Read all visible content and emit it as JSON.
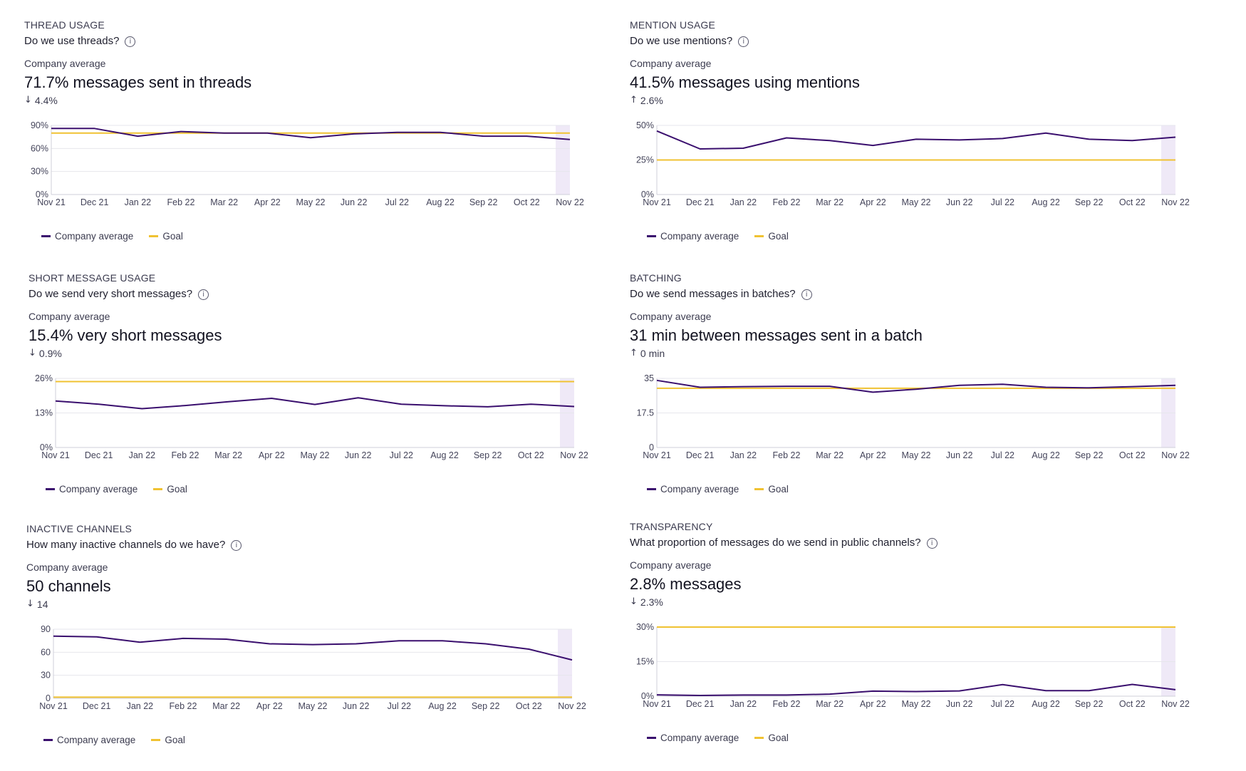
{
  "common": {
    "avg_label": "Company average",
    "legend": [
      "Company average",
      "Goal"
    ],
    "colors": {
      "series": "#3a0f6e",
      "goal": "#f0c232",
      "grid": "#e6e6ec",
      "highlight": "#efe9f7"
    }
  },
  "panels": [
    {
      "kicker": "THREAD USAGE",
      "question": "Do we use threads?",
      "headline": "71.7% messages sent in threads",
      "delta": "4.4%",
      "delta_dir": "down",
      "chart_data": {
        "type": "line",
        "categories": [
          "Nov 21",
          "Dec 21",
          "Jan 22",
          "Feb 22",
          "Mar 22",
          "Apr 22",
          "May 22",
          "Jun 22",
          "Jul 22",
          "Aug 22",
          "Sep 22",
          "Oct 22",
          "Nov 22"
        ],
        "yticks": [
          "0%",
          "30%",
          "60%",
          "90%"
        ],
        "ylim": [
          0,
          90
        ],
        "series": [
          {
            "name": "Company average",
            "values": [
              86,
              86,
              76,
              82,
              80,
              80,
              74,
              79,
              81,
              81,
              76,
              76,
              71.7
            ]
          },
          {
            "name": "Goal",
            "values": [
              80,
              80,
              80,
              80,
              80,
              80,
              80,
              80,
              80,
              80,
              80,
              80,
              80
            ]
          }
        ]
      }
    },
    {
      "kicker": "MENTION USAGE",
      "question": "Do we use mentions?",
      "headline": "41.5% messages using mentions",
      "delta": "2.6%",
      "delta_dir": "up",
      "chart_data": {
        "type": "line",
        "categories": [
          "Nov 21",
          "Dec 21",
          "Jan 22",
          "Feb 22",
          "Mar 22",
          "Apr 22",
          "May 22",
          "Jun 22",
          "Jul 22",
          "Aug 22",
          "Sep 22",
          "Oct 22",
          "Nov 22"
        ],
        "yticks": [
          "0%",
          "25%",
          "50%"
        ],
        "ylim": [
          0,
          50
        ],
        "series": [
          {
            "name": "Company average",
            "values": [
              46,
              33,
              33.5,
              41,
              39,
              35.5,
              40,
              39.5,
              40.5,
              44.5,
              40,
              39,
              41.5
            ]
          },
          {
            "name": "Goal",
            "values": [
              25,
              25,
              25,
              25,
              25,
              25,
              25,
              25,
              25,
              25,
              25,
              25,
              25
            ]
          }
        ]
      }
    },
    {
      "kicker": "SHORT MESSAGE USAGE",
      "question": "Do we send very short messages?",
      "headline": "15.4% very short messages",
      "delta": "0.9%",
      "delta_dir": "down",
      "chart_data": {
        "type": "line",
        "categories": [
          "Nov 21",
          "Dec 21",
          "Jan 22",
          "Feb 22",
          "Mar 22",
          "Apr 22",
          "May 22",
          "Jun 22",
          "Jul 22",
          "Aug 22",
          "Sep 22",
          "Oct 22",
          "Nov 22"
        ],
        "yticks": [
          "0%",
          "13%",
          "26%"
        ],
        "ylim": [
          0,
          26
        ],
        "series": [
          {
            "name": "Company average",
            "values": [
              17.5,
              16.3,
              14.6,
              15.8,
              17.2,
              18.5,
              16.2,
              18.7,
              16.3,
              15.7,
              15.3,
              16.3,
              15.4
            ]
          },
          {
            "name": "Goal",
            "values": [
              24.8,
              24.8,
              24.8,
              24.8,
              24.8,
              24.8,
              24.8,
              24.8,
              24.8,
              24.8,
              24.8,
              24.8,
              24.8
            ]
          }
        ]
      }
    },
    {
      "kicker": "BATCHING",
      "question": "Do we send messages in batches?",
      "headline": "31 min between messages sent in a batch",
      "delta": "0 min",
      "delta_dir": "up",
      "chart_data": {
        "type": "line",
        "categories": [
          "Nov 21",
          "Dec 21",
          "Jan 22",
          "Feb 22",
          "Mar 22",
          "Apr 22",
          "May 22",
          "Jun 22",
          "Jul 22",
          "Aug 22",
          "Sep 22",
          "Oct 22",
          "Nov 22"
        ],
        "yticks": [
          "0",
          "17.5",
          "35"
        ],
        "ylim": [
          0,
          35
        ],
        "series": [
          {
            "name": "Company average",
            "values": [
              34,
              30.5,
              30.8,
              31,
              31,
              28,
              29.5,
              31.5,
              32,
              30.5,
              30.2,
              30.8,
              31.5
            ]
          },
          {
            "name": "Goal",
            "values": [
              30,
              30,
              30,
              30,
              30,
              30,
              30,
              30,
              30,
              30,
              30,
              30,
              30
            ]
          }
        ]
      }
    },
    {
      "kicker": "INACTIVE CHANNELS",
      "question": "How many inactive channels do we have?",
      "headline": "50 channels",
      "delta": "14",
      "delta_dir": "down",
      "chart_data": {
        "type": "line",
        "categories": [
          "Nov 21",
          "Dec 21",
          "Jan 22",
          "Feb 22",
          "Mar 22",
          "Apr 22",
          "May 22",
          "Jun 22",
          "Jul 22",
          "Aug 22",
          "Sep 22",
          "Oct 22",
          "Nov 22"
        ],
        "yticks": [
          "0",
          "30",
          "60",
          "90"
        ],
        "ylim": [
          0,
          90
        ],
        "series": [
          {
            "name": "Company average",
            "values": [
              81,
              80,
              73,
              78,
              77,
              71,
              70,
              71,
              75,
              75,
              71,
              64,
              50
            ]
          },
          {
            "name": "Goal",
            "values": [
              1.5,
              1.5,
              1.5,
              1.5,
              1.5,
              1.5,
              1.5,
              1.5,
              1.5,
              1.5,
              1.5,
              1.5,
              1.5
            ]
          }
        ]
      }
    },
    {
      "kicker": "TRANSPARENCY",
      "question": "What proportion of messages do we send in public channels?",
      "headline": "2.8% messages",
      "delta": "2.3%",
      "delta_dir": "down",
      "chart_data": {
        "type": "line",
        "categories": [
          "Nov 21",
          "Dec 21",
          "Jan 22",
          "Feb 22",
          "Mar 22",
          "Apr 22",
          "May 22",
          "Jun 22",
          "Jul 22",
          "Aug 22",
          "Sep 22",
          "Oct 22",
          "Nov 22"
        ],
        "yticks": [
          "0%",
          "15%",
          "30%"
        ],
        "ylim": [
          0,
          30
        ],
        "series": [
          {
            "name": "Company average",
            "values": [
              0.6,
              0.3,
              0.5,
              0.5,
              0.9,
              2.2,
              2.0,
              2.3,
              5.0,
              2.4,
              2.4,
              5.1,
              2.8
            ]
          },
          {
            "name": "Goal",
            "values": [
              30,
              30,
              30,
              30,
              30,
              30,
              30,
              30,
              30,
              30,
              30,
              30,
              30
            ]
          }
        ]
      }
    }
  ]
}
